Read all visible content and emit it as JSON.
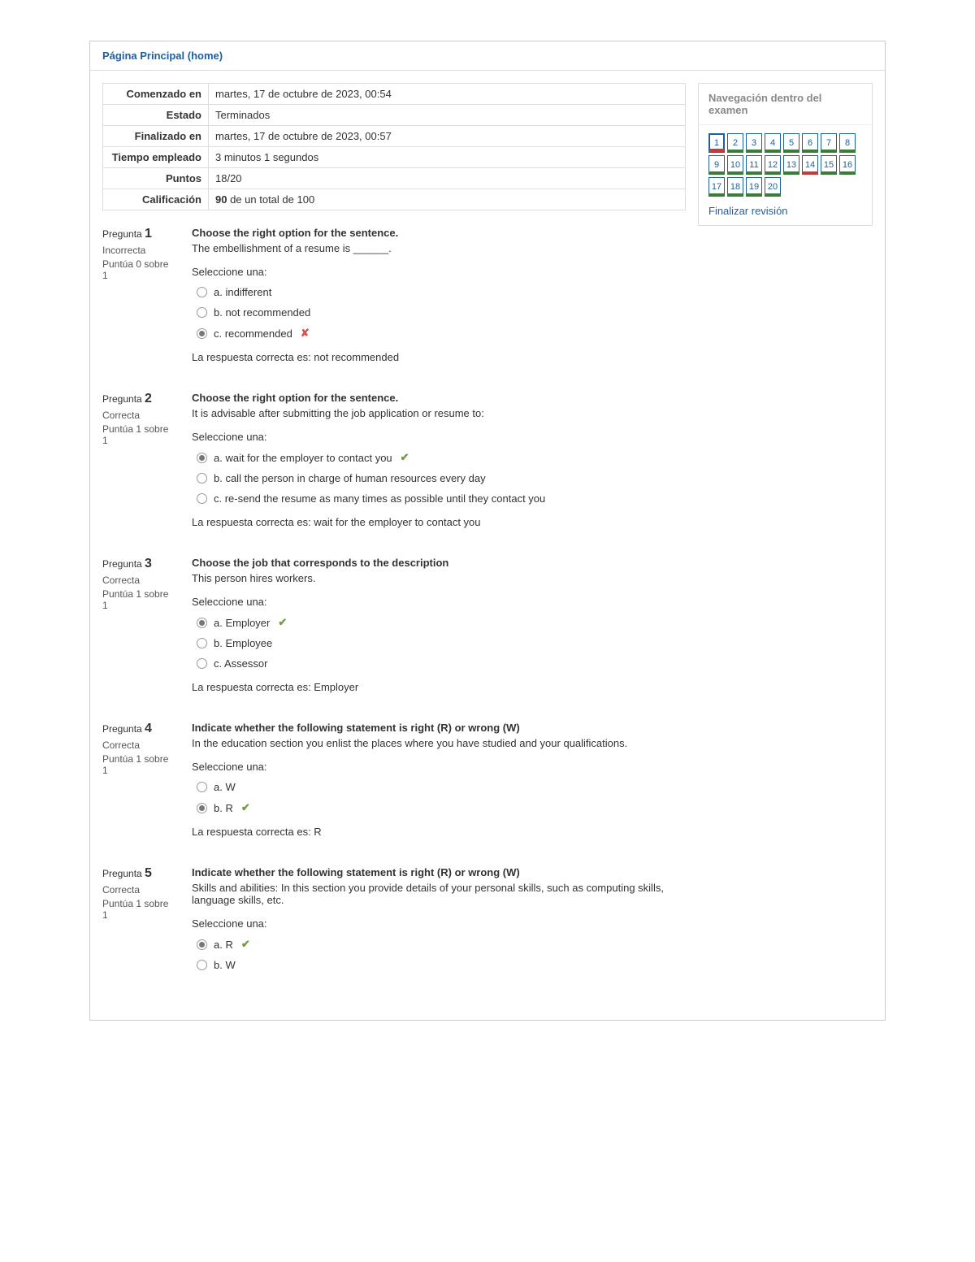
{
  "breadcrumb": {
    "home": "Página Principal (home)"
  },
  "summary": {
    "rows": [
      {
        "label": "Comenzado en",
        "value": "martes, 17 de octubre de 2023, 00:54"
      },
      {
        "label": "Estado",
        "value": "Terminados"
      },
      {
        "label": "Finalizado en",
        "value": "martes, 17 de octubre de 2023, 00:57"
      },
      {
        "label": "Tiempo empleado",
        "value": "3 minutos 1 segundos"
      },
      {
        "label": "Puntos",
        "value": "18/20"
      }
    ],
    "grade_label": "Calificación",
    "grade_bold": "90",
    "grade_rest": " de un total de 100"
  },
  "labels": {
    "question_word": "Pregunta",
    "select_one": "Seleccione una:",
    "correct_answer_prefix": "La respuesta correcta es: "
  },
  "questions": [
    {
      "num": "1",
      "state": "Incorrecta",
      "grade": "Puntúa 0 sobre 1",
      "prompt_bold": "Choose the right option for the sentence.",
      "prompt": "The embellishment of a resume is ______.",
      "options": [
        {
          "letter": "a.",
          "text": "indifferent",
          "selected": false,
          "mark": ""
        },
        {
          "letter": "b.",
          "text": "not recommended",
          "selected": false,
          "mark": ""
        },
        {
          "letter": "c.",
          "text": "recommended",
          "selected": true,
          "mark": "wrong"
        }
      ],
      "correct": "not recommended"
    },
    {
      "num": "2",
      "state": "Correcta",
      "grade": "Puntúa 1 sobre 1",
      "prompt_bold": "Choose the right option for the sentence.",
      "prompt": "It is advisable after submitting the job application or resume to:",
      "options": [
        {
          "letter": "a.",
          "text": "wait for the employer to contact you",
          "selected": true,
          "mark": "correct"
        },
        {
          "letter": "b.",
          "text": "call the person in charge of human resources every day",
          "selected": false,
          "mark": ""
        },
        {
          "letter": "c.",
          "text": "re-send the resume as many times as possible until they contact you",
          "selected": false,
          "mark": ""
        }
      ],
      "correct": "wait for the employer to contact you"
    },
    {
      "num": "3",
      "state": "Correcta",
      "grade": "Puntúa 1 sobre 1",
      "prompt_bold": "Choose the job that corresponds to the description",
      "prompt": "This person hires workers.",
      "options": [
        {
          "letter": "a.",
          "text": "Employer",
          "selected": true,
          "mark": "correct"
        },
        {
          "letter": "b.",
          "text": "Employee",
          "selected": false,
          "mark": ""
        },
        {
          "letter": "c.",
          "text": "Assessor",
          "selected": false,
          "mark": ""
        }
      ],
      "correct": "Employer"
    },
    {
      "num": "4",
      "state": "Correcta",
      "grade": "Puntúa 1 sobre 1",
      "prompt_bold": "Indicate whether the following statement is right (R) or wrong (W)",
      "prompt": "In the education section you enlist the places where you have studied and your qualifications.",
      "options": [
        {
          "letter": "a.",
          "text": "W",
          "selected": false,
          "mark": ""
        },
        {
          "letter": "b.",
          "text": "R",
          "selected": true,
          "mark": "correct"
        }
      ],
      "correct": "R"
    },
    {
      "num": "5",
      "state": "Correcta",
      "grade": "Puntúa 1 sobre 1",
      "prompt_bold": "Indicate whether the following statement is right (R) or wrong (W)",
      "prompt": "Skills and abilities: In this section you provide details of your personal skills, such as computing skills, language skills, etc.",
      "options": [
        {
          "letter": "a.",
          "text": "R",
          "selected": true,
          "mark": "correct"
        },
        {
          "letter": "b.",
          "text": "W",
          "selected": false,
          "mark": ""
        }
      ],
      "correct": ""
    }
  ],
  "nav": {
    "title": "Navegación dentro del examen",
    "items": [
      {
        "n": "1",
        "status": "wrong",
        "current": true
      },
      {
        "n": "2",
        "status": "correct",
        "current": false
      },
      {
        "n": "3",
        "status": "correct",
        "current": false
      },
      {
        "n": "4",
        "status": "correct",
        "current": false
      },
      {
        "n": "5",
        "status": "correct",
        "current": false
      },
      {
        "n": "6",
        "status": "correct",
        "current": false
      },
      {
        "n": "7",
        "status": "correct",
        "current": false
      },
      {
        "n": "8",
        "status": "correct",
        "current": false
      },
      {
        "n": "9",
        "status": "correct",
        "current": false
      },
      {
        "n": "10",
        "status": "correct",
        "current": false
      },
      {
        "n": "11",
        "status": "correct",
        "current": false
      },
      {
        "n": "12",
        "status": "correct",
        "current": false
      },
      {
        "n": "13",
        "status": "correct",
        "current": false
      },
      {
        "n": "14",
        "status": "wrong",
        "current": false
      },
      {
        "n": "15",
        "status": "correct",
        "current": false
      },
      {
        "n": "16",
        "status": "correct",
        "current": false
      },
      {
        "n": "17",
        "status": "correct",
        "current": false
      },
      {
        "n": "18",
        "status": "correct",
        "current": false
      },
      {
        "n": "19",
        "status": "correct",
        "current": false
      },
      {
        "n": "20",
        "status": "correct",
        "current": false
      }
    ],
    "finish_link": "Finalizar revisión"
  }
}
